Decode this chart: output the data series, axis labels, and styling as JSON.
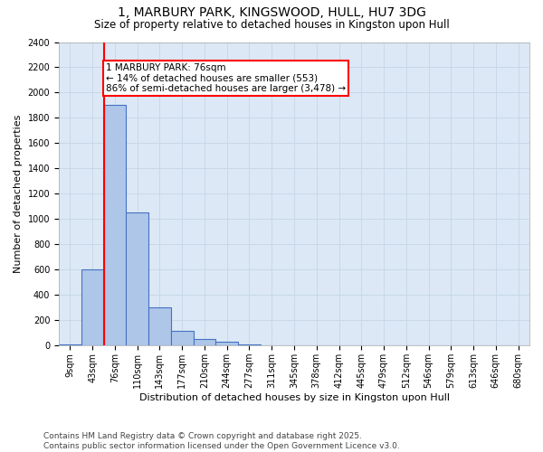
{
  "title": "1, MARBURY PARK, KINGSWOOD, HULL, HU7 3DG",
  "subtitle": "Size of property relative to detached houses in Kingston upon Hull",
  "xlabel": "Distribution of detached houses by size in Kingston upon Hull",
  "ylabel": "Number of detached properties",
  "categories": [
    "9sqm",
    "43sqm",
    "76sqm",
    "110sqm",
    "143sqm",
    "177sqm",
    "210sqm",
    "244sqm",
    "277sqm",
    "311sqm",
    "345sqm",
    "378sqm",
    "412sqm",
    "445sqm",
    "479sqm",
    "512sqm",
    "546sqm",
    "579sqm",
    "613sqm",
    "646sqm",
    "680sqm"
  ],
  "values": [
    10,
    600,
    1900,
    1050,
    300,
    120,
    55,
    30,
    10,
    5,
    3,
    2,
    2,
    2,
    2,
    1,
    1,
    1,
    1,
    1,
    0
  ],
  "bar_color": "#aec6e8",
  "bar_edge_color": "#4472c4",
  "grid_color": "#c8d8e8",
  "background_color": "#dce8f5",
  "red_line_index": 2,
  "annotation_text": "1 MARBURY PARK: 76sqm\n← 14% of detached houses are smaller (553)\n86% of semi-detached houses are larger (3,478) →",
  "ylim": [
    0,
    2400
  ],
  "yticks": [
    0,
    200,
    400,
    600,
    800,
    1000,
    1200,
    1400,
    1600,
    1800,
    2000,
    2200,
    2400
  ],
  "footer": "Contains HM Land Registry data © Crown copyright and database right 2025.\nContains public sector information licensed under the Open Government Licence v3.0.",
  "title_fontsize": 10,
  "subtitle_fontsize": 8.5,
  "xlabel_fontsize": 8,
  "ylabel_fontsize": 8,
  "tick_fontsize": 7,
  "footer_fontsize": 6.5,
  "annotation_fontsize": 7.5
}
